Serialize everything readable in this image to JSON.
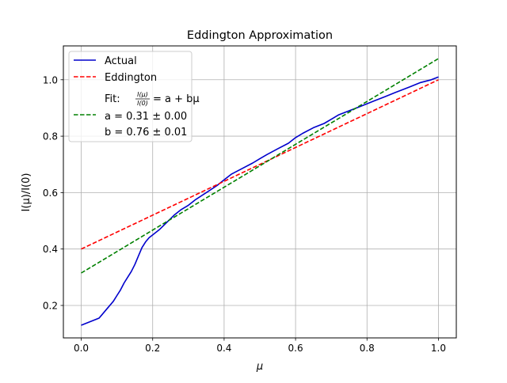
{
  "chart_data": {
    "type": "line",
    "title": "Eddington Approximation",
    "xlabel": "μ",
    "ylabel": "I(μ)/I(0)",
    "xlim": [
      -0.05,
      1.05
    ],
    "ylim": [
      0.085,
      1.12
    ],
    "x_ticks": [
      "0.0",
      "0.2",
      "0.4",
      "0.6",
      "0.8",
      "1.0"
    ],
    "x_tick_values": [
      0.0,
      0.2,
      0.4,
      0.6,
      0.8,
      1.0
    ],
    "y_ticks": [
      "0.2",
      "0.4",
      "0.6",
      "0.8",
      "1.0"
    ],
    "y_tick_values": [
      0.2,
      0.4,
      0.6,
      0.8,
      1.0
    ],
    "grid": true,
    "legend_position": "upper-left",
    "series": [
      {
        "name": "Actual",
        "color": "#0000cc",
        "style": "solid",
        "x": [
          0.0,
          0.05,
          0.07,
          0.09,
          0.1,
          0.11,
          0.12,
          0.13,
          0.14,
          0.15,
          0.16,
          0.17,
          0.18,
          0.19,
          0.2,
          0.22,
          0.24,
          0.26,
          0.28,
          0.3,
          0.32,
          0.35,
          0.38,
          0.4,
          0.42,
          0.45,
          0.48,
          0.5,
          0.52,
          0.55,
          0.58,
          0.6,
          0.62,
          0.65,
          0.68,
          0.7,
          0.72,
          0.75,
          0.78,
          0.8,
          0.82,
          0.85,
          0.88,
          0.9,
          0.92,
          0.95,
          0.98,
          1.0
        ],
        "y": [
          0.13,
          0.155,
          0.185,
          0.215,
          0.235,
          0.255,
          0.28,
          0.3,
          0.32,
          0.345,
          0.375,
          0.405,
          0.425,
          0.44,
          0.45,
          0.47,
          0.495,
          0.52,
          0.54,
          0.555,
          0.575,
          0.6,
          0.625,
          0.645,
          0.665,
          0.685,
          0.705,
          0.72,
          0.735,
          0.755,
          0.775,
          0.795,
          0.81,
          0.83,
          0.845,
          0.86,
          0.875,
          0.89,
          0.905,
          0.915,
          0.925,
          0.94,
          0.955,
          0.965,
          0.975,
          0.99,
          1.0,
          1.01
        ]
      },
      {
        "name": "Eddington",
        "color": "#ff0000",
        "style": "dashed",
        "x": [
          0.0,
          1.0
        ],
        "y": [
          0.4,
          1.0
        ]
      },
      {
        "name": "Fit",
        "color": "#008000",
        "style": "dashed",
        "x": [
          0.0,
          1.0
        ],
        "y": [
          0.315,
          1.075
        ]
      }
    ],
    "legend": {
      "actual": "Actual",
      "eddington": "Eddington",
      "fit_prefix": "Fit: ",
      "fit_frac_num": "I(μ)",
      "fit_frac_den": "I(0)",
      "fit_formula": "= a + bμ",
      "fit_a": "a = 0.31 ± 0.00",
      "fit_b": "b = 0.76 ± 0.01"
    }
  }
}
